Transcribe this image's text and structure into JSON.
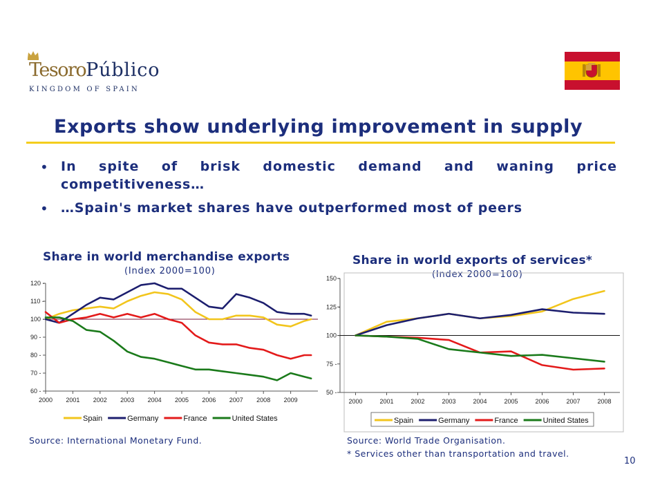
{
  "header": {
    "logo_brand_part1": "Tesoro",
    "logo_brand_part2": "Público",
    "logo_tagline": "KINGDOM OF SPAIN",
    "flag": "spain-flag",
    "colors": {
      "title": "#1c2e7c",
      "rule": "#f4cd1c",
      "flag_red": "#c8102e",
      "flag_yellow": "#ffc400"
    }
  },
  "slide": {
    "title": "Exports show underlying improvement in supply",
    "bullets": [
      {
        "line1": "In spite of brisk domestic demand and waning price",
        "line2": "competitiveness…"
      },
      {
        "line1": "…Spain's market shares have outperformed most of peers"
      }
    ],
    "page_number": "10"
  },
  "left_chart": {
    "title": "Share in world merchandise exports",
    "subtitle": "(Index 2000=100)",
    "source": "Source: International Monetary Fund."
  },
  "right_chart": {
    "title": "Share in world exports of services*",
    "subtitle": "(Index 2000=100)",
    "source": "Source: World Trade Organisation.",
    "footnote": "* Services other than transportation and travel."
  },
  "chart_data": [
    {
      "type": "line",
      "title": "Share in world merchandise exports",
      "subtitle": "(Index 2000=100)",
      "xlabel": "",
      "ylabel": "",
      "x_ticks": [
        "2000",
        "2001",
        "2002",
        "2003",
        "2004",
        "2005",
        "2006",
        "2007",
        "2008",
        "2009"
      ],
      "xlim": [
        2000,
        2010
      ],
      "ylim": [
        60,
        120
      ],
      "y_ticks": [
        60,
        70,
        80,
        90,
        100,
        110,
        120
      ],
      "reference_line": 100,
      "grid": false,
      "legend": "bottom",
      "series": [
        {
          "name": "Spain",
          "color": "#f2c51c",
          "x": [
            2000,
            2000.5,
            2001,
            2001.5,
            2002,
            2002.5,
            2003,
            2003.5,
            2004,
            2004.5,
            2005,
            2005.5,
            2006,
            2006.5,
            2007,
            2007.5,
            2008,
            2008.5,
            2009,
            2009.5,
            2009.75
          ],
          "y": [
            100,
            103,
            105,
            106,
            107,
            106,
            110,
            113,
            115,
            114,
            111,
            104,
            100,
            100,
            102,
            102,
            101,
            97,
            96,
            99,
            100
          ]
        },
        {
          "name": "Germany",
          "color": "#1c1e6e",
          "x": [
            2000,
            2000.5,
            2001,
            2001.5,
            2002,
            2002.5,
            2003,
            2003.5,
            2004,
            2004.5,
            2005,
            2005.5,
            2006,
            2006.5,
            2007,
            2007.5,
            2008,
            2008.5,
            2009,
            2009.5,
            2009.75
          ],
          "y": [
            100,
            98,
            103,
            108,
            112,
            111,
            115,
            119,
            120,
            117,
            117,
            112,
            107,
            106,
            114,
            112,
            109,
            104,
            103,
            103,
            102
          ]
        },
        {
          "name": "France",
          "color": "#e31a1a",
          "x": [
            2000,
            2000.5,
            2001,
            2001.5,
            2002,
            2002.5,
            2003,
            2003.5,
            2004,
            2004.5,
            2005,
            2005.5,
            2006,
            2006.5,
            2007,
            2007.5,
            2008,
            2008.5,
            2009,
            2009.5,
            2009.75
          ],
          "y": [
            104,
            98,
            100,
            101,
            103,
            101,
            103,
            101,
            103,
            100,
            98,
            91,
            87,
            86,
            86,
            84,
            83,
            80,
            78,
            80,
            80
          ]
        },
        {
          "name": "United States",
          "color": "#1a7a1a",
          "x": [
            2000,
            2000.5,
            2001,
            2001.5,
            2002,
            2002.5,
            2003,
            2003.5,
            2004,
            2004.5,
            2005,
            2005.5,
            2006,
            2006.5,
            2007,
            2007.5,
            2008,
            2008.5,
            2009,
            2009.5,
            2009.75
          ],
          "y": [
            101,
            101,
            99,
            94,
            93,
            88,
            82,
            79,
            78,
            76,
            74,
            72,
            72,
            71,
            70,
            69,
            68,
            66,
            70,
            68,
            67
          ]
        }
      ]
    },
    {
      "type": "line",
      "title": "Share in world exports of services*",
      "subtitle": "(Index 2000=100)",
      "xlabel": "",
      "ylabel": "",
      "x_ticks": [
        "2000",
        "2001",
        "2002",
        "2003",
        "2004",
        "2005",
        "2006",
        "2007",
        "2008"
      ],
      "xlim": [
        1999.5,
        2008.5
      ],
      "ylim": [
        50,
        150
      ],
      "y_ticks": [
        50,
        75,
        100,
        125,
        150
      ],
      "reference_line": 100,
      "grid": false,
      "legend": "bottom",
      "series": [
        {
          "name": "Spain",
          "color": "#f2c51c",
          "x": [
            2000,
            2001,
            2002,
            2003,
            2004,
            2005,
            2006,
            2007,
            2008
          ],
          "y": [
            100,
            112,
            115,
            119,
            115,
            117,
            121,
            132,
            139
          ]
        },
        {
          "name": "Germany",
          "color": "#1c1e6e",
          "x": [
            2000,
            2001,
            2002,
            2003,
            2004,
            2005,
            2006,
            2007,
            2008
          ],
          "y": [
            100,
            109,
            115,
            119,
            115,
            118,
            123,
            120,
            119
          ]
        },
        {
          "name": "France",
          "color": "#e31a1a",
          "x": [
            2000,
            2001,
            2002,
            2003,
            2004,
            2005,
            2006,
            2007,
            2008
          ],
          "y": [
            100,
            99,
            98,
            96,
            85,
            86,
            74,
            70,
            71
          ]
        },
        {
          "name": "United States",
          "color": "#1a7a1a",
          "x": [
            2000,
            2001,
            2002,
            2003,
            2004,
            2005,
            2006,
            2007,
            2008
          ],
          "y": [
            100,
            99,
            97,
            88,
            85,
            82,
            83,
            80,
            77
          ]
        }
      ]
    }
  ]
}
